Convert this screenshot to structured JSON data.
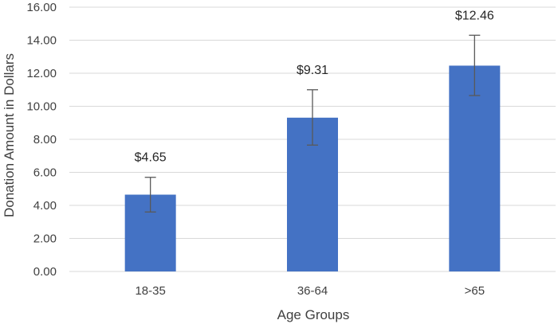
{
  "chart_data": {
    "type": "bar",
    "title": "",
    "xlabel": "Age Groups",
    "ylabel": "Donation Amount in Dollars",
    "categories": [
      "18-35",
      "36-64",
      ">65"
    ],
    "values": [
      4.65,
      9.31,
      12.46
    ],
    "data_labels": [
      "$4.65",
      "$9.31",
      "$12.46"
    ],
    "error_low": [
      3.6,
      7.65,
      10.65
    ],
    "error_high": [
      5.7,
      11.0,
      14.3
    ],
    "ylim": [
      0,
      16
    ],
    "yticks": [
      0,
      2,
      4,
      6,
      8,
      10,
      12,
      14,
      16
    ],
    "ytick_labels": [
      "0.00",
      "2.00",
      "4.00",
      "6.00",
      "8.00",
      "10.00",
      "12.00",
      "14.00",
      "16.00"
    ],
    "grid": true,
    "legend": "none",
    "colors": {
      "bar": "#4472c4",
      "grid": "#d9d9d9",
      "error_bar": "#595959",
      "text": "#404040"
    }
  }
}
